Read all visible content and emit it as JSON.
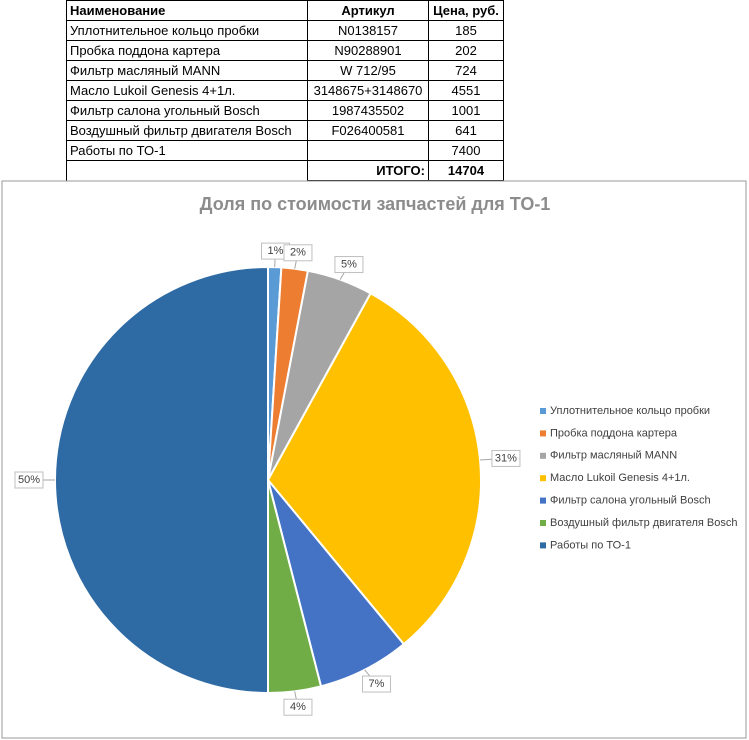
{
  "table": {
    "headers": [
      "Наименование",
      "Артикул",
      "Цена, руб."
    ],
    "rows": [
      {
        "name": "Уплотнительное кольцо пробки",
        "article": "N0138157",
        "price": 185
      },
      {
        "name": "Пробка поддона картера",
        "article": "N90288901",
        "price": 202
      },
      {
        "name": "Фильтр масляный MANN",
        "article": "W 712/95",
        "price": 724
      },
      {
        "name": "Масло Lukoil Genesis 4+1л.",
        "article": "3148675+3148670",
        "price": 4551
      },
      {
        "name": "Фильтр салона угольный Bosch",
        "article": "1987435502",
        "price": 1001
      },
      {
        "name": "Воздушный фильтр двигателя Bosch",
        "article": "F026400581",
        "price": 641
      },
      {
        "name": "Работы по ТО-1",
        "price": 7400
      }
    ],
    "total_label": "ИТОГО:",
    "total": 14704
  },
  "chart_data": {
    "type": "pie",
    "title": "Доля по стоимости запчастей для ТО-1",
    "categories": [
      "Уплотнительное кольцо пробки",
      "Пробка поддона картера",
      "Фильтр масляный MANN",
      "Масло Lukoil Genesis 4+1л.",
      "Фильтр салона угольный Bosch",
      "Воздушный фильтр двигателя Bosch",
      "Работы по ТО-1"
    ],
    "values": [
      1,
      2,
      5,
      31,
      7,
      4,
      50
    ],
    "value_labels": [
      "1%",
      "2%",
      "5%",
      "31%",
      "7%",
      "4%",
      "50%"
    ],
    "colors": [
      "#5b9bd5",
      "#ed7d31",
      "#a5a5a5",
      "#ffc000",
      "#4472c4",
      "#70ad47",
      "#2e6aa3"
    ],
    "legend": "right"
  }
}
